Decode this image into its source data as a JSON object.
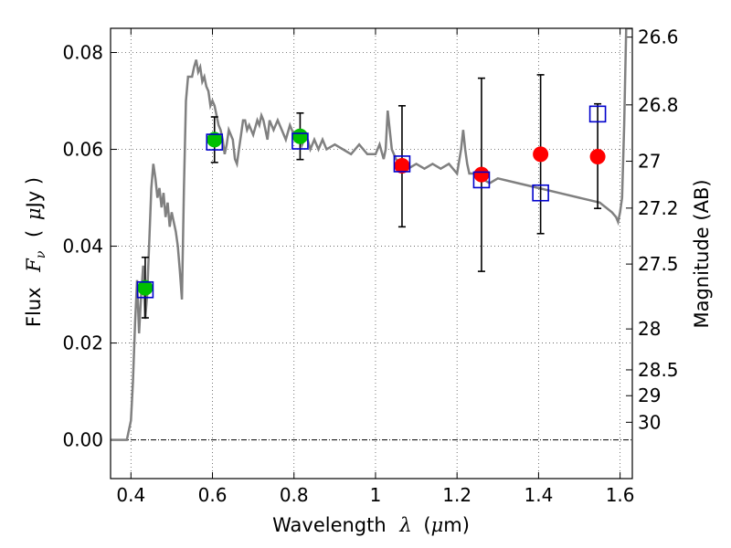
{
  "chart_data": {
    "type": "scatter",
    "title": "",
    "xlabel": "Wavelength",
    "xlabel_symbol": "λ",
    "xlabel_unit_open": "(",
    "xlabel_unit_mu": "μ",
    "xlabel_unit_rest": "m)",
    "ylabel": "Flux",
    "ylabel_symbol": "F",
    "ylabel_subscript": "ν",
    "ylabel_unit_open": "(",
    "ylabel_unit_mu": "μ",
    "ylabel_unit_rest": "Jy )",
    "y2label": "Magnitude (AB)",
    "xlim": [
      0.35,
      1.63
    ],
    "ylim": [
      -0.008,
      0.085
    ],
    "grid": true,
    "x_ticks": [
      0.4,
      0.6,
      0.8,
      1.0,
      1.2,
      1.4,
      1.6
    ],
    "x_tick_labels": [
      "0.4",
      "0.6",
      "0.8",
      "1",
      "1.2",
      "1.4",
      "1.6"
    ],
    "y_ticks": [
      0.0,
      0.02,
      0.04,
      0.06,
      0.08
    ],
    "y_tick_labels": [
      "0.00",
      "0.02",
      "0.04",
      "0.06",
      "0.08"
    ],
    "mag_ticks": [
      {
        "label": "26.6",
        "mag": 26.6
      },
      {
        "label": "26.8",
        "mag": 26.8
      },
      {
        "label": "27",
        "mag": 27.0
      },
      {
        "label": "27.2",
        "mag": 27.2
      },
      {
        "label": "27.5",
        "mag": 27.5
      },
      {
        "label": "28",
        "mag": 28.0
      },
      {
        "label": "28.5",
        "mag": 28.5
      },
      {
        "label": "29",
        "mag": 29.0
      },
      {
        "label": "30",
        "mag": 30.0
      }
    ],
    "model_spectrum": {
      "name": "SED model",
      "color": "#808080",
      "x": [
        0.35,
        0.39,
        0.4,
        0.405,
        0.41,
        0.415,
        0.42,
        0.425,
        0.43,
        0.435,
        0.44,
        0.45,
        0.455,
        0.46,
        0.465,
        0.47,
        0.475,
        0.48,
        0.485,
        0.49,
        0.495,
        0.5,
        0.51,
        0.515,
        0.52,
        0.525,
        0.53,
        0.535,
        0.54,
        0.55,
        0.555,
        0.56,
        0.565,
        0.57,
        0.575,
        0.58,
        0.585,
        0.59,
        0.595,
        0.6,
        0.605,
        0.61,
        0.615,
        0.62,
        0.625,
        0.63,
        0.635,
        0.64,
        0.645,
        0.65,
        0.655,
        0.66,
        0.665,
        0.67,
        0.675,
        0.68,
        0.685,
        0.69,
        0.7,
        0.71,
        0.715,
        0.72,
        0.725,
        0.73,
        0.735,
        0.74,
        0.745,
        0.75,
        0.76,
        0.77,
        0.78,
        0.79,
        0.8,
        0.81,
        0.815,
        0.82,
        0.83,
        0.84,
        0.85,
        0.86,
        0.87,
        0.88,
        0.9,
        0.92,
        0.94,
        0.96,
        0.98,
        1.0,
        1.01,
        1.02,
        1.025,
        1.03,
        1.04,
        1.05,
        1.06,
        1.08,
        1.1,
        1.12,
        1.14,
        1.16,
        1.18,
        1.2,
        1.21,
        1.215,
        1.22,
        1.225,
        1.23,
        1.24,
        1.26,
        1.28,
        1.3,
        1.35,
        1.4,
        1.45,
        1.5,
        1.55,
        1.58,
        1.59,
        1.595,
        1.6,
        1.605,
        1.61,
        1.615,
        1.63
      ],
      "y": [
        0.0,
        0.0,
        0.004,
        0.012,
        0.024,
        0.033,
        0.022,
        0.03,
        0.036,
        0.025,
        0.03,
        0.052,
        0.057,
        0.054,
        0.05,
        0.052,
        0.048,
        0.051,
        0.046,
        0.049,
        0.044,
        0.047,
        0.043,
        0.04,
        0.035,
        0.029,
        0.052,
        0.07,
        0.075,
        0.075,
        0.077,
        0.0785,
        0.076,
        0.077,
        0.074,
        0.075,
        0.073,
        0.072,
        0.069,
        0.07,
        0.069,
        0.067,
        0.065,
        0.064,
        0.062,
        0.059,
        0.061,
        0.064,
        0.063,
        0.062,
        0.058,
        0.057,
        0.06,
        0.063,
        0.066,
        0.066,
        0.064,
        0.065,
        0.063,
        0.066,
        0.065,
        0.067,
        0.066,
        0.064,
        0.062,
        0.066,
        0.065,
        0.064,
        0.066,
        0.064,
        0.062,
        0.065,
        0.063,
        0.062,
        0.064,
        0.061,
        0.063,
        0.06,
        0.062,
        0.06,
        0.062,
        0.06,
        0.061,
        0.06,
        0.059,
        0.061,
        0.059,
        0.059,
        0.061,
        0.058,
        0.06,
        0.068,
        0.06,
        0.058,
        0.057,
        0.056,
        0.057,
        0.056,
        0.057,
        0.056,
        0.057,
        0.055,
        0.06,
        0.064,
        0.06,
        0.057,
        0.055,
        0.055,
        0.054,
        0.053,
        0.054,
        0.053,
        0.052,
        0.051,
        0.05,
        0.049,
        0.047,
        0.046,
        0.045,
        0.047,
        0.05,
        0.065,
        0.085,
        0.085
      ]
    },
    "series": [
      {
        "name": "green points",
        "color": "#00c000",
        "x": [
          0.435,
          0.605,
          0.815
        ],
        "y": [
          0.0314,
          0.062,
          0.0627
        ]
      },
      {
        "name": "red points",
        "color": "#ff0000",
        "x": [
          1.065,
          1.26,
          1.405,
          1.545
        ],
        "y": [
          0.0566,
          0.0548,
          0.059,
          0.0585
        ]
      },
      {
        "name": "model band fluxes",
        "color": "#0000cc",
        "x": [
          0.435,
          0.605,
          0.815,
          1.065,
          1.26,
          1.405,
          1.545
        ],
        "y": [
          0.031,
          0.0615,
          0.0617,
          0.057,
          0.0537,
          0.051,
          0.0673
        ]
      }
    ],
    "error_bars": {
      "x": [
        0.435,
        0.605,
        0.815,
        1.065,
        1.26,
        1.405,
        1.545
      ],
      "y_low": [
        0.0252,
        0.0573,
        0.0579,
        0.044,
        0.0348,
        0.0426,
        0.0478
      ],
      "y_high": [
        0.0377,
        0.0667,
        0.0675,
        0.069,
        0.0747,
        0.0754,
        0.0694
      ]
    }
  }
}
